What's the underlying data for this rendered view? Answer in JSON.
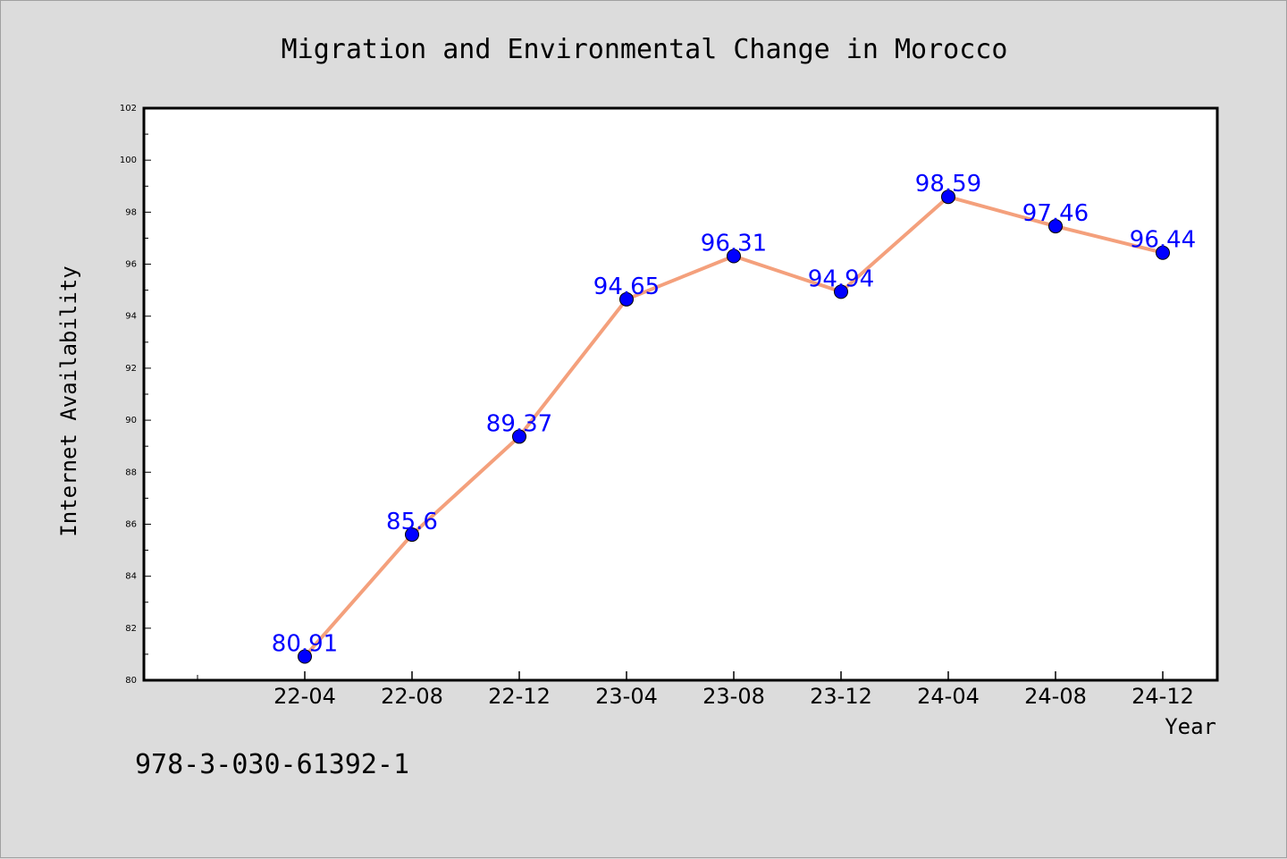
{
  "chart_data": {
    "type": "line",
    "title": "Migration and Environmental Change in Morocco",
    "xlabel": "Year",
    "ylabel": "Internet Availability",
    "categories": [
      "22-04",
      "22-08",
      "22-12",
      "23-04",
      "23-08",
      "23-12",
      "24-04",
      "24-08",
      "24-12"
    ],
    "series": [
      {
        "values": [
          80.91,
          85.6,
          89.37,
          94.65,
          96.31,
          94.94,
          98.59,
          97.46,
          96.44
        ],
        "labels": [
          "80.91",
          "85.6",
          "89.37",
          "94.65",
          "96.31",
          "94.94",
          "98.59",
          "97.46",
          "96.44"
        ],
        "line_color": "#f4a07c",
        "marker_color": "#0000ff",
        "label_color": "#0000ff"
      }
    ],
    "ylim": [
      80,
      102
    ],
    "y_ticks": [
      80,
      82,
      84,
      86,
      88,
      90,
      92,
      94,
      96,
      98,
      100,
      102
    ],
    "grid": false,
    "legend": "none"
  },
  "footnote": "978-3-030-61392-1",
  "colors": {
    "page_background": "#dcdcdc",
    "plot_background": "#ffffff",
    "axis": "#000000"
  }
}
